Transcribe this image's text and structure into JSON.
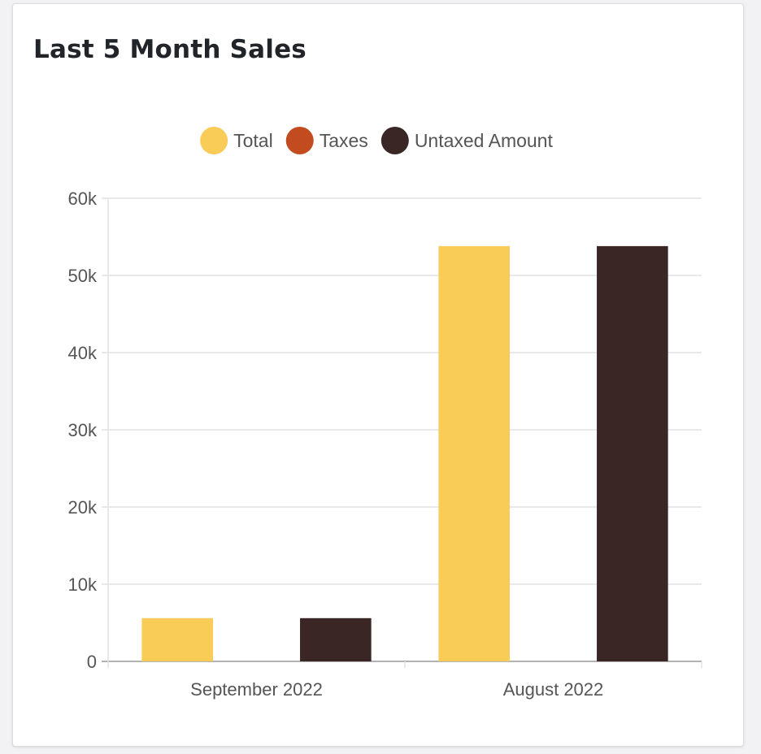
{
  "card": {
    "title": "Last 5 Month Sales"
  },
  "chart_data": {
    "type": "bar",
    "title": "",
    "xlabel": "",
    "ylabel": "",
    "categories": [
      "September 2022",
      "August 2022"
    ],
    "series": [
      {
        "name": "Total",
        "color": "#f9cb57",
        "values": [
          5600,
          53800
        ]
      },
      {
        "name": "Taxes",
        "color": "#c24b1f",
        "values": [
          0,
          0
        ]
      },
      {
        "name": "Untaxed Amount",
        "color": "#3a2624",
        "values": [
          5600,
          53800
        ]
      }
    ],
    "ylim": [
      0,
      60000
    ],
    "yticks": [
      {
        "value": 0,
        "label": "0"
      },
      {
        "value": 10000,
        "label": "10k"
      },
      {
        "value": 20000,
        "label": "20k"
      },
      {
        "value": 30000,
        "label": "30k"
      },
      {
        "value": 40000,
        "label": "40k"
      },
      {
        "value": 50000,
        "label": "50k"
      },
      {
        "value": 60000,
        "label": "60k"
      }
    ],
    "grid": true,
    "legend_position": "top-center"
  }
}
